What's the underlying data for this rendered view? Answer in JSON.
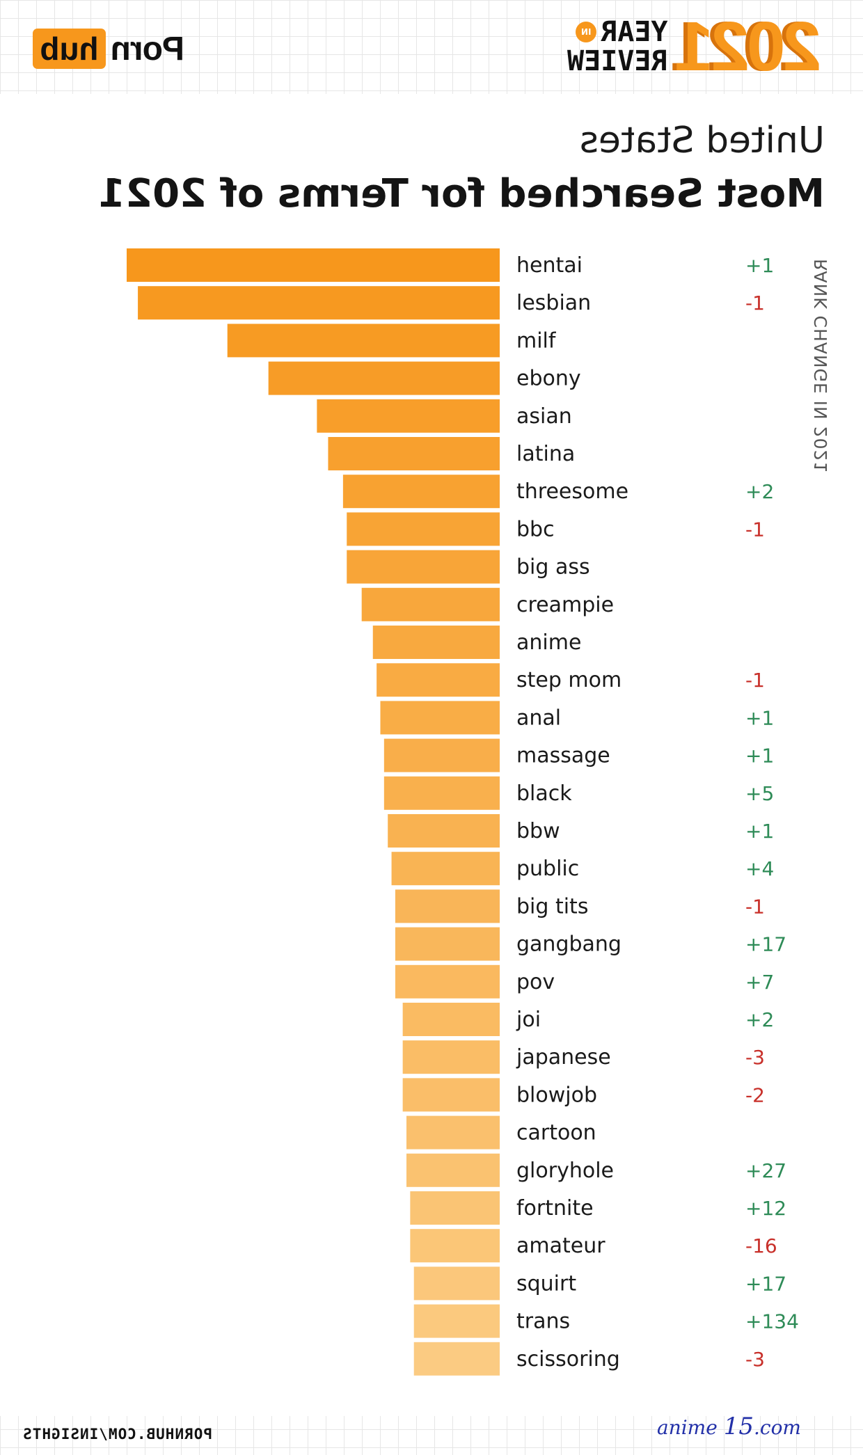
{
  "header": {
    "brand_word": "Porn",
    "brand_box": "hub",
    "year": "2021",
    "year_words_line1": "YEAR",
    "year_in": "IN",
    "year_words_line2": "REVIEW"
  },
  "subtitle": "United States",
  "title": "Most Searched for Terms of 2021",
  "side_label": "RANK CHANGE IN 2021",
  "footer_url": "PORNHUB.COM/INSIGHTS",
  "watermark": {
    "prefix": "anime",
    "number": "15",
    "suffix": ".com"
  },
  "colors": {
    "bar_dark": "#f7971c",
    "bar_light": "#fbcb82",
    "positive": "#2e8b57",
    "negative": "#c8302a"
  },
  "chart_data": {
    "type": "bar",
    "orientation": "horizontal",
    "categories": [
      "hentai",
      "lesbian",
      "milf",
      "ebony",
      "asian",
      "latina",
      "threesome",
      "bbc",
      "big ass",
      "creampie",
      "anime",
      "step mom",
      "anal",
      "massage",
      "black",
      "bbw",
      "public",
      "big tits",
      "gangbang",
      "pov",
      "joi",
      "japanese",
      "blowjob",
      "cartoon",
      "gloryhole",
      "fortnite",
      "amateur",
      "squirt",
      "trans",
      "scissoring"
    ],
    "values": [
      100,
      97,
      73,
      62,
      49,
      46,
      42,
      41,
      41,
      37,
      34,
      33,
      32,
      31,
      31,
      30,
      29,
      28,
      28,
      28,
      26,
      26,
      26,
      25,
      25,
      24,
      24,
      23,
      23,
      23
    ],
    "rank_change": [
      "+1",
      "-1",
      "",
      "",
      "",
      "",
      "+2",
      "-1",
      "",
      "",
      "",
      "-1",
      "+1",
      "+1",
      "+5",
      "+1",
      "+4",
      "-1",
      "+17",
      "+7",
      "+2",
      "-3",
      "-2",
      "",
      "+27",
      "+12",
      "-16",
      "+17",
      "+134",
      "-3"
    ],
    "xlim": [
      0,
      100
    ]
  }
}
